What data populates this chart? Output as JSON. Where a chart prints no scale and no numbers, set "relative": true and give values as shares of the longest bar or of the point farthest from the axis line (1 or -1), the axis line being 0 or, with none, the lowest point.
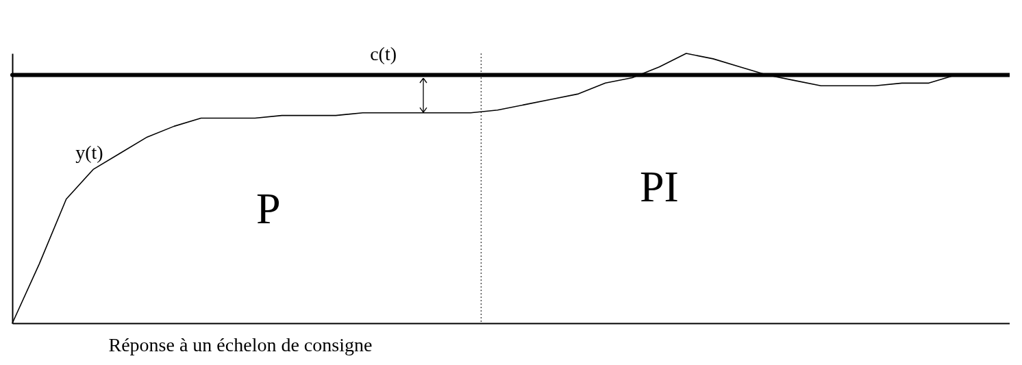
{
  "chart_data": {
    "type": "line",
    "relative": true,
    "xlabel": "Réponse à un échelon de consigne",
    "categories": [
      null,
      null,
      null,
      null,
      null,
      null,
      null,
      null,
      null,
      null,
      null,
      null,
      null,
      null,
      null,
      null,
      null,
      null,
      null,
      null,
      null,
      null,
      null,
      null,
      null,
      null,
      null,
      null,
      null,
      null,
      null,
      null,
      null,
      null,
      null,
      null,
      null,
      null
    ],
    "series": [
      {
        "name": "c(t)",
        "color": "#000000",
        "values": [
          0.92,
          0.92,
          0.92,
          0.92,
          0.92,
          0.92,
          0.92,
          0.92,
          0.92,
          0.92,
          0.92,
          0.92,
          0.92,
          0.92,
          0.92,
          0.92,
          0.92,
          0.92,
          0.92,
          0.92,
          0.92,
          0.92,
          0.92,
          0.92,
          0.92,
          0.92,
          0.92,
          0.92,
          0.92,
          0.92,
          0.92,
          0.92,
          0.92,
          0.92,
          0.92,
          0.92,
          0.92,
          0.92
        ]
      },
      {
        "name": "y(t)",
        "color": "#000000",
        "values": [
          0,
          0.22,
          0.46,
          0.57,
          0.63,
          0.69,
          0.73,
          0.76,
          0.76,
          0.76,
          0.77,
          0.77,
          0.77,
          0.78,
          0.78,
          0.78,
          0.78,
          0.78,
          0.79,
          0.81,
          0.83,
          0.85,
          0.89,
          0.91,
          0.95,
          1,
          0.98,
          0.95,
          0.92,
          0.9,
          0.88,
          0.88,
          0.88,
          0.89,
          0.89,
          0.92,
          null,
          null
        ]
      }
    ],
    "annotations": [
      "P",
      "PI"
    ]
  }
}
